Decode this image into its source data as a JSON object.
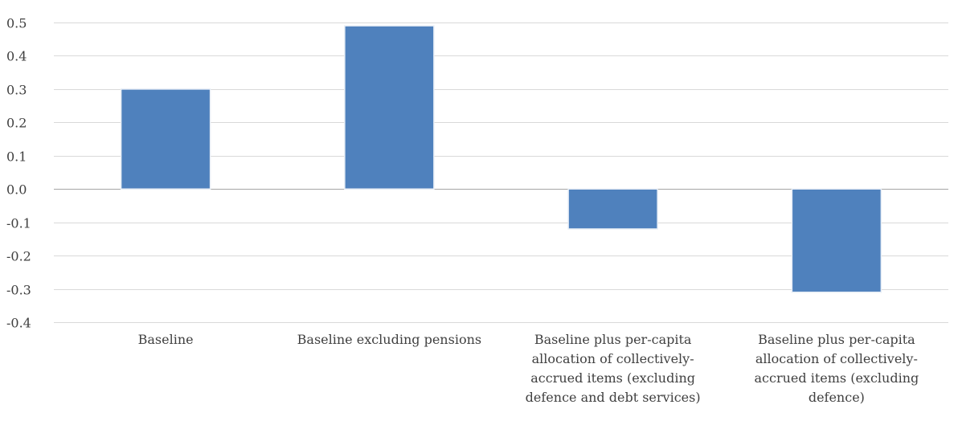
{
  "chart_data": {
    "type": "bar",
    "title": "",
    "xlabel": "",
    "ylabel": "",
    "ylim": [
      -0.4,
      0.5
    ],
    "yticks": [
      "0.5",
      "0.4",
      "0.3",
      "0.2",
      "0.1",
      "0.0",
      "-0.1",
      "-0.2",
      "-0.3",
      "-0.4"
    ],
    "categories": [
      [
        "Baseline"
      ],
      [
        "Baseline excluding pensions"
      ],
      [
        "Baseline plus per-capita",
        "allocation of collectively-",
        "accrued items (excluding",
        "defence and debt services)"
      ],
      [
        "Baseline plus per-capita",
        "allocation of collectively-",
        "accrued items (excluding",
        "defence)"
      ]
    ],
    "values": [
      0.3,
      0.49,
      -0.12,
      -0.31
    ],
    "grid": true,
    "legend": "none",
    "colors": {
      "bar": "#4f81bd",
      "grid": "#d9d9d9",
      "text": "#404040"
    }
  }
}
